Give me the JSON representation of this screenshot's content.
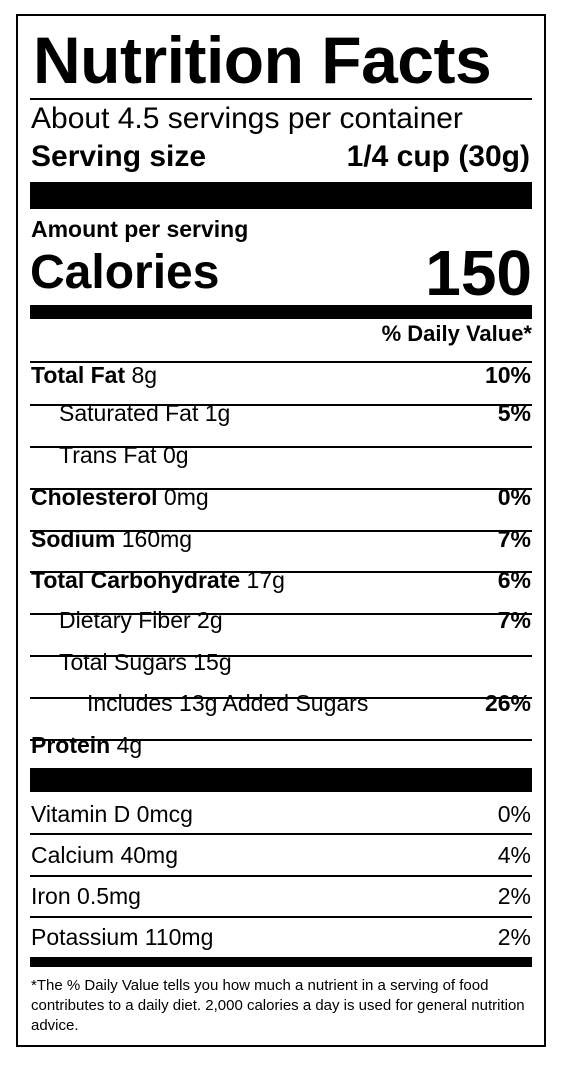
{
  "title": "Nutrition Facts",
  "servings_per_container": "About 4.5 servings per container",
  "serving_size_label": "Serving size",
  "serving_size_value": "1/4 cup (30g)",
  "amount_per_serving": "Amount per serving",
  "calories_label": "Calories",
  "calories_value": "150",
  "daily_value_header": "% Daily Value*",
  "nutrients": [
    {
      "name": "Total Fat",
      "amount": "8g",
      "dv": "10%"
    },
    {
      "name": "Saturated Fat",
      "amount": "1g",
      "dv": "5%"
    },
    {
      "name": "Trans Fat",
      "amount": "0g",
      "dv": ""
    },
    {
      "name": "Cholesterol",
      "amount": "0mg",
      "dv": "0%"
    },
    {
      "name": "Sodium",
      "amount": "160mg",
      "dv": "7%"
    },
    {
      "name": "Total Carbohydrate",
      "amount": "17g",
      "dv": "6%"
    },
    {
      "name": "Dietary Fiber",
      "amount": "2g",
      "dv": "7%"
    },
    {
      "name": "Total Sugars",
      "amount": "15g",
      "dv": ""
    },
    {
      "name": "Includes 13g Added Sugars",
      "amount": "",
      "dv": "26%"
    },
    {
      "name": "Protein",
      "amount": "4g",
      "dv": ""
    }
  ],
  "vitamins": [
    {
      "name": "Vitamin D",
      "amount": "0mcg",
      "dv": "0%"
    },
    {
      "name": "Calcium",
      "amount": "40mg",
      "dv": "4%"
    },
    {
      "name": "Iron",
      "amount": "0.5mg",
      "dv": "2%"
    },
    {
      "name": "Potassium",
      "amount": "110mg",
      "dv": "2%"
    }
  ],
  "footnote": "*The % Daily Value tells you how much a nutrient in a serving of food contributes to a daily diet. 2,000 calories a day is used for general nutrition advice."
}
